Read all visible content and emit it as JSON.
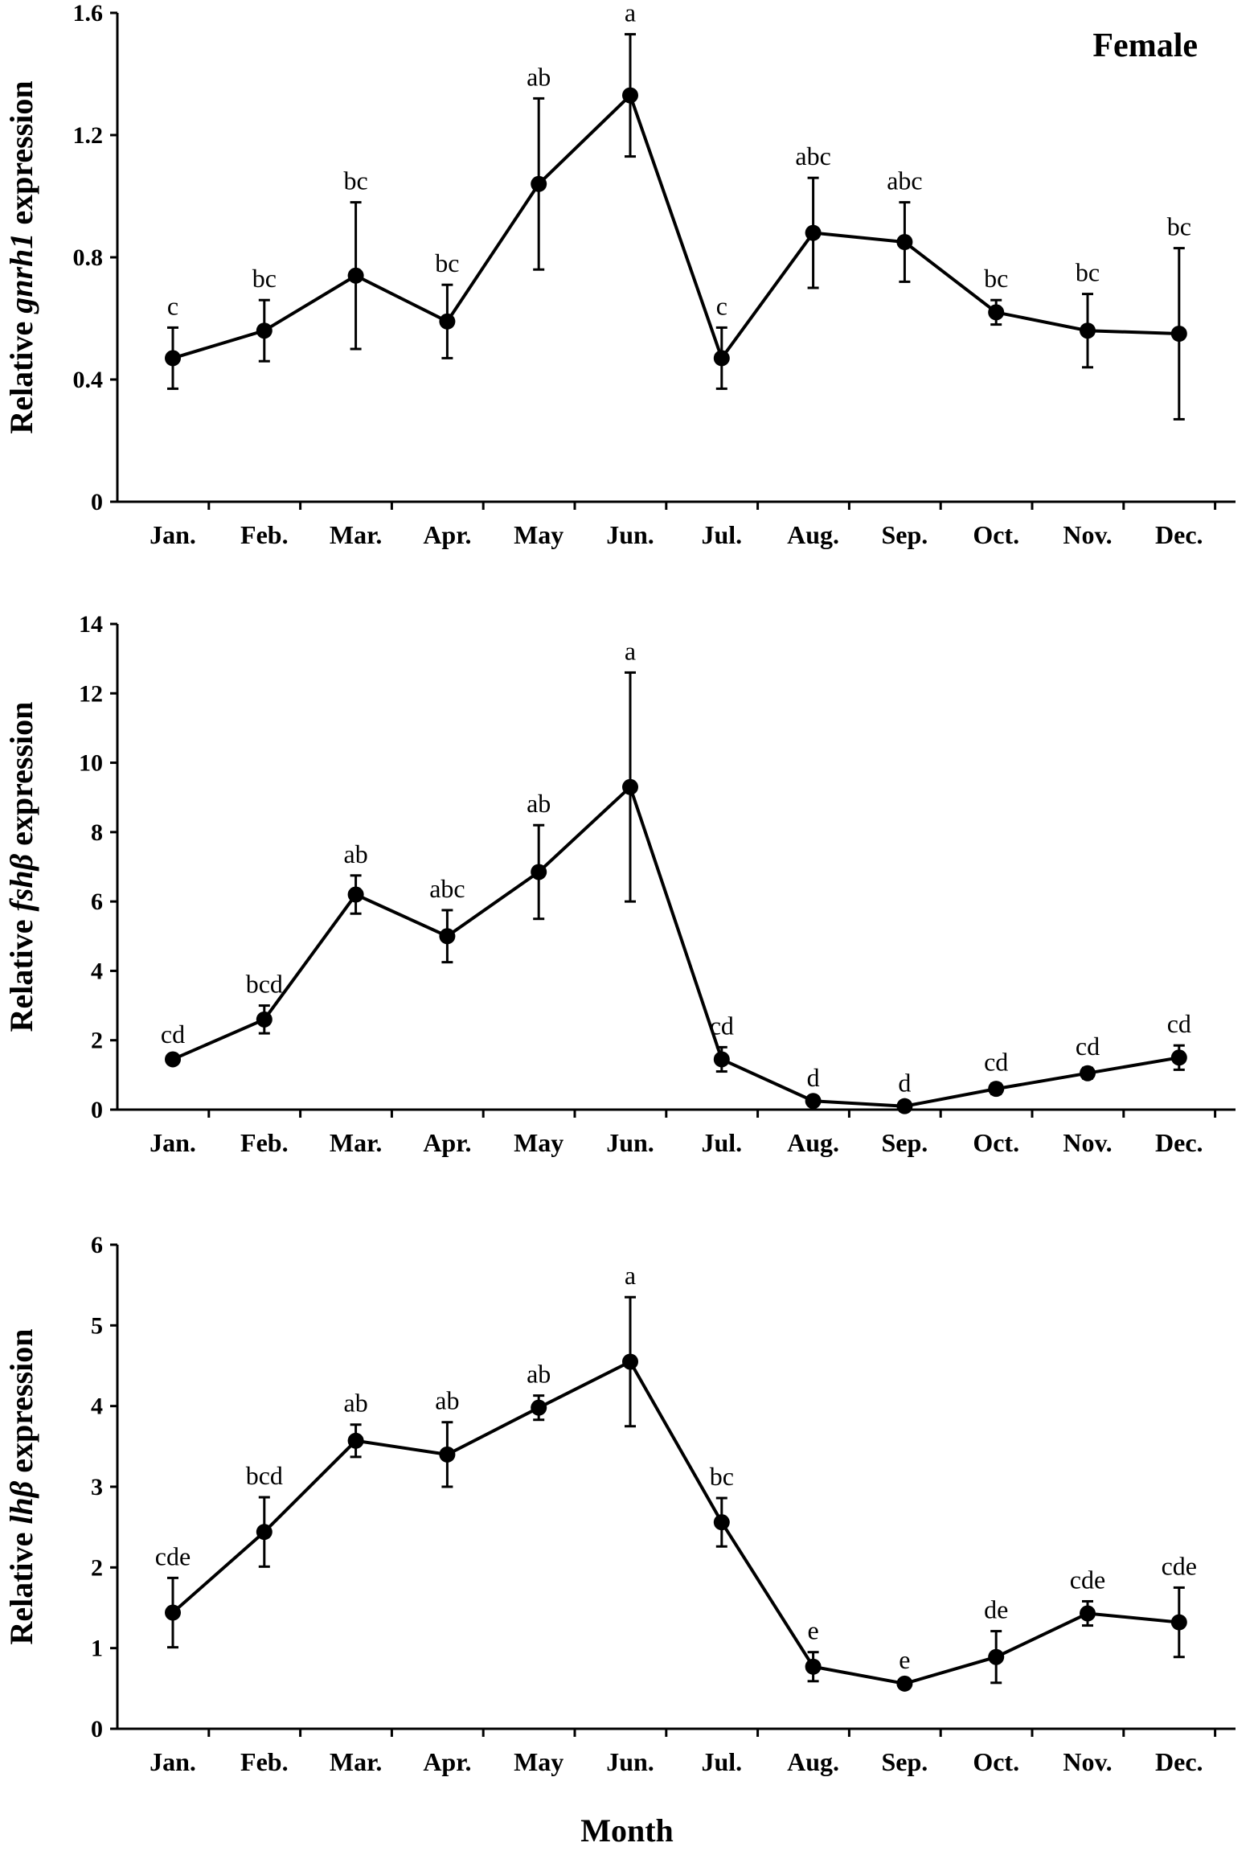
{
  "chart_data": [
    {
      "type": "line",
      "title": "",
      "legend": "Female",
      "ylabel_prefix": "Relative ",
      "ylabel_gene": "gnrh1",
      "ylabel_suffix": " expression",
      "ylim": [
        0,
        1.6
      ],
      "yticks": [
        0,
        0.4,
        0.8,
        1.2,
        1.6
      ],
      "ytick_labels": [
        "0",
        "0.4",
        "0.8",
        "1.2",
        "1.6"
      ],
      "categories": [
        "Jan.",
        "Feb.",
        "Mar.",
        "Apr.",
        "May",
        "Jun.",
        "Jul.",
        "Aug.",
        "Sep.",
        "Oct.",
        "Nov.",
        "Dec."
      ],
      "values": [
        0.47,
        0.56,
        0.74,
        0.59,
        1.04,
        1.33,
        0.47,
        0.88,
        0.85,
        0.62,
        0.56,
        0.55
      ],
      "errors": [
        0.1,
        0.1,
        0.24,
        0.12,
        0.28,
        0.2,
        0.1,
        0.18,
        0.13,
        0.04,
        0.12,
        0.28
      ],
      "significance": [
        "c",
        "bc",
        "bc",
        "bc",
        "ab",
        "a",
        "c",
        "abc",
        "abc",
        "bc",
        "bc",
        "bc"
      ],
      "color": "#000000"
    },
    {
      "type": "line",
      "title": "",
      "legend": "",
      "ylabel_prefix": "Relative ",
      "ylabel_gene": "fshβ",
      "ylabel_suffix": " expression",
      "ylim": [
        0,
        14
      ],
      "yticks": [
        0,
        2,
        4,
        6,
        8,
        10,
        12,
        14
      ],
      "ytick_labels": [
        "0",
        "2",
        "4",
        "6",
        "8",
        "10",
        "12",
        "14"
      ],
      "categories": [
        "Jan.",
        "Feb.",
        "Mar.",
        "Apr.",
        "May",
        "Jun.",
        "Jul.",
        "Aug.",
        "Sep.",
        "Oct.",
        "Nov.",
        "Dec."
      ],
      "values": [
        1.45,
        2.6,
        6.2,
        5.0,
        6.85,
        9.3,
        1.45,
        0.25,
        0.1,
        0.6,
        1.05,
        1.5
      ],
      "errors": [
        0.1,
        0.4,
        0.55,
        0.75,
        1.35,
        3.3,
        0.35,
        0.05,
        0.05,
        0.15,
        0.15,
        0.35
      ],
      "significance": [
        "cd",
        "bcd",
        "ab",
        "abc",
        "ab",
        "a",
        "cd",
        "d",
        "d",
        "cd",
        "cd",
        "cd"
      ],
      "color": "#000000"
    },
    {
      "type": "line",
      "title": "",
      "legend": "",
      "ylabel_prefix": "Relative ",
      "ylabel_gene": "lhβ",
      "ylabel_suffix": " expression",
      "ylim": [
        0,
        6
      ],
      "yticks": [
        0,
        1,
        2,
        3,
        4,
        5,
        6
      ],
      "ytick_labels": [
        "0",
        "1",
        "2",
        "3",
        "4",
        "5",
        "6"
      ],
      "categories": [
        "Jan.",
        "Feb.",
        "Mar.",
        "Apr.",
        "May",
        "Jun.",
        "Jul.",
        "Aug.",
        "Sep.",
        "Oct.",
        "Nov.",
        "Dec."
      ],
      "values": [
        1.44,
        2.44,
        3.57,
        3.4,
        3.98,
        4.55,
        2.56,
        0.77,
        0.56,
        0.89,
        1.43,
        1.32
      ],
      "errors": [
        0.43,
        0.43,
        0.2,
        0.4,
        0.15,
        0.8,
        0.3,
        0.18,
        0.03,
        0.32,
        0.15,
        0.43
      ],
      "significance": [
        "cde",
        "bcd",
        "ab",
        "ab",
        "ab",
        "a",
        "bc",
        "e",
        "e",
        "de",
        "cde",
        "cde"
      ],
      "color": "#000000"
    }
  ],
  "xlabel": "Month"
}
